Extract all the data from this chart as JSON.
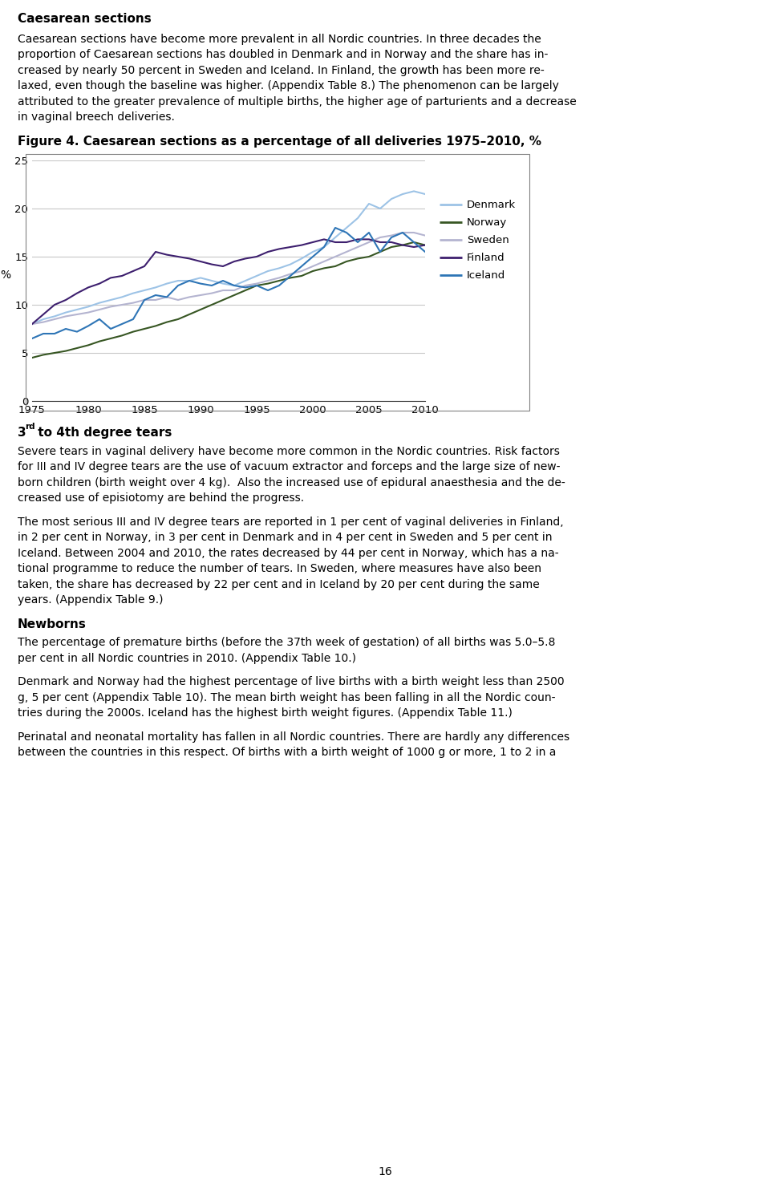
{
  "title_figure": "Figure 4. Caesarean sections as a percentage of all deliveries 1975–2010, %",
  "heading": "Caesarean sections",
  "paragraph1": "Caesarean sections have become more prevalent in all Nordic countries. In three decades the proportion of Caesarean sections has doubled in Denmark and in Norway and the share has in-creased by nearly 50 percent in Sweden and Iceland. In Finland, the growth has been more re-laxed, even though the baseline was higher. (Appendix Table 8.) The phenomenon can be largely attributed to the greater prevalence of multiple births, the higher age of parturients and a decrease in vaginal breech deliveries.",
  "heading2_pre": "3",
  "heading2_sup": "rd",
  "heading2_post": " to 4th degree tears",
  "paragraph2": "Severe tears in vaginal delivery have become more common in the Nordic countries. Risk factors for III and IV degree tears are the use of vacuum extractor and forceps and the large size of new-born children (birth weight over 4 kg). Also the increased use of epidural anaesthesia and the de-creased use of episiotomy are behind the progress.",
  "paragraph3": "The most serious III and IV degree tears are reported in 1 per cent of vaginal deliveries in Finland, in 2 per cent in Norway, in 3 per cent in Denmark and in 4 per cent in Sweden and 5 per cent in Iceland. Between 2004 and 2010, the rates decreased by 44 per cent in Norway, which has a na-tional programme to reduce the number of tears. In Sweden, where measures have also been taken, the share has decreased by 22 per cent and in Iceland by 20 per cent during the same years. (Appendix Table 9.)",
  "heading3": "Newborns",
  "paragraph4": "The percentage of premature births (before the 37th week of gestation) of all births was 5.0–5.8 per cent in all Nordic countries in 2010. (Appendix Table 10.)",
  "paragraph5": "Denmark and Norway had the highest percentage of live births with a birth weight less than 2500 g, 5 per cent (Appendix Table 10). The mean birth weight has been falling in all the Nordic coun-tries during the 2000s. Iceland has the highest birth weight figures. (Appendix Table 11.)",
  "paragraph6": "Perinatal and neonatal mortality has fallen in all Nordic countries. There are hardly any differences between the countries in this respect. Of births with a birth weight of 1000 g or more, 1 to 2 in a",
  "page_number": "16",
  "years": [
    1975,
    1976,
    1977,
    1978,
    1979,
    1980,
    1981,
    1982,
    1983,
    1984,
    1985,
    1986,
    1987,
    1988,
    1989,
    1990,
    1991,
    1992,
    1993,
    1994,
    1995,
    1996,
    1997,
    1998,
    1999,
    2000,
    2001,
    2002,
    2003,
    2004,
    2005,
    2006,
    2007,
    2008,
    2009,
    2010
  ],
  "denmark": [
    8.0,
    8.5,
    8.8,
    9.2,
    9.5,
    9.8,
    10.2,
    10.5,
    10.8,
    11.2,
    11.5,
    11.8,
    12.2,
    12.5,
    12.5,
    12.8,
    12.5,
    12.2,
    12.0,
    12.5,
    13.0,
    13.5,
    13.8,
    14.2,
    14.8,
    15.5,
    16.0,
    17.0,
    18.0,
    19.0,
    20.5,
    20.0,
    21.0,
    21.5,
    21.8,
    21.5
  ],
  "norway": [
    4.5,
    4.8,
    5.0,
    5.2,
    5.5,
    5.8,
    6.2,
    6.5,
    6.8,
    7.2,
    7.5,
    7.8,
    8.2,
    8.5,
    9.0,
    9.5,
    10.0,
    10.5,
    11.0,
    11.5,
    12.0,
    12.2,
    12.5,
    12.8,
    13.0,
    13.5,
    13.8,
    14.0,
    14.5,
    14.8,
    15.0,
    15.5,
    16.0,
    16.2,
    16.5,
    16.2
  ],
  "sweden": [
    8.0,
    8.2,
    8.5,
    8.8,
    9.0,
    9.2,
    9.5,
    9.8,
    10.0,
    10.2,
    10.5,
    10.5,
    10.8,
    10.5,
    10.8,
    11.0,
    11.2,
    11.5,
    11.5,
    12.0,
    12.2,
    12.5,
    12.8,
    13.2,
    13.5,
    14.0,
    14.5,
    15.0,
    15.5,
    16.0,
    16.5,
    17.0,
    17.2,
    17.5,
    17.5,
    17.2
  ],
  "finland": [
    8.0,
    9.0,
    10.0,
    10.5,
    11.2,
    11.8,
    12.2,
    12.8,
    13.0,
    13.5,
    14.0,
    15.5,
    15.2,
    15.0,
    14.8,
    14.5,
    14.2,
    14.0,
    14.5,
    14.8,
    15.0,
    15.5,
    15.8,
    16.0,
    16.2,
    16.5,
    16.8,
    16.5,
    16.5,
    16.8,
    16.8,
    16.5,
    16.5,
    16.2,
    16.0,
    16.2
  ],
  "iceland": [
    6.5,
    7.0,
    7.0,
    7.5,
    7.2,
    7.8,
    8.5,
    7.5,
    8.0,
    8.5,
    10.5,
    11.0,
    10.8,
    12.0,
    12.5,
    12.2,
    12.0,
    12.5,
    12.0,
    11.8,
    12.0,
    11.5,
    12.0,
    13.0,
    14.0,
    15.0,
    16.0,
    18.0,
    17.5,
    16.5,
    17.5,
    15.5,
    17.0,
    17.5,
    16.5,
    15.5
  ],
  "denmark_color": "#9dc3e6",
  "norway_color": "#375623",
  "sweden_color": "#b4b4d0",
  "finland_color": "#3d1f6e",
  "iceland_color": "#2e75b6",
  "ylim": [
    0,
    25
  ],
  "yticks": [
    0,
    5,
    10,
    15,
    20,
    25
  ],
  "xticks": [
    1975,
    1980,
    1985,
    1990,
    1995,
    2000,
    2005,
    2010
  ],
  "ylabel": "%",
  "grid_color": "#c8c8c8",
  "border_color": "#808080"
}
